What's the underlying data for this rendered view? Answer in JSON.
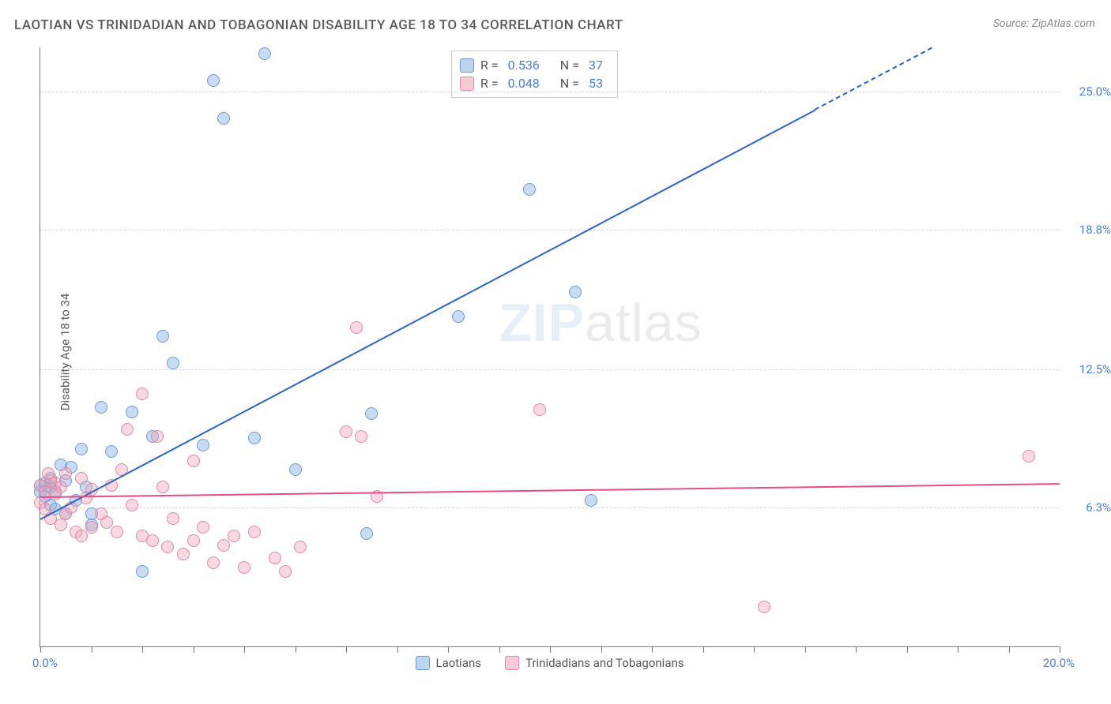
{
  "title": "LAOTIAN VS TRINIDADIAN AND TOBAGONIAN DISABILITY AGE 18 TO 34 CORRELATION CHART",
  "source": "Source: ZipAtlas.com",
  "ylabel": "Disability Age 18 to 34",
  "watermark_bold": "ZIP",
  "watermark_rest": "atlas",
  "chart": {
    "type": "scatter",
    "xlim": [
      0,
      20
    ],
    "ylim": [
      0,
      27
    ],
    "xlabels": {
      "min": "0.0%",
      "max": "20.0%"
    },
    "yticks": [
      {
        "v": 6.3,
        "label": "6.3%"
      },
      {
        "v": 12.5,
        "label": "12.5%"
      },
      {
        "v": 18.8,
        "label": "18.8%"
      },
      {
        "v": 25.0,
        "label": "25.0%"
      }
    ],
    "xticks": [
      0,
      1,
      2,
      3,
      4,
      5,
      6,
      7,
      8,
      9,
      10,
      11,
      12,
      13,
      14,
      15,
      16,
      17,
      18,
      19,
      20
    ],
    "colors": {
      "blue_fill": "#87b0e2",
      "blue_stroke": "#6a9bd8",
      "pink_fill": "#f0a0b4",
      "pink_stroke": "#e388a3",
      "axis": "#777777",
      "grid": "#d8d8d8",
      "text_axis": "#4a7fd6"
    },
    "series": [
      {
        "id": "laotians",
        "name": "Laotians",
        "color": "blue",
        "R": "0.536",
        "N": "37",
        "trend": {
          "x1": 0,
          "y1": 5.8,
          "x2": 17.5,
          "y2": 27.0,
          "color": "#2b63c9",
          "dashed_from_x": 15.2
        },
        "points": [
          [
            0.0,
            7.0
          ],
          [
            0.0,
            7.3
          ],
          [
            0.1,
            6.8
          ],
          [
            0.1,
            7.4
          ],
          [
            0.2,
            6.4
          ],
          [
            0.2,
            7.2
          ],
          [
            0.2,
            7.6
          ],
          [
            0.3,
            6.2
          ],
          [
            0.3,
            7.0
          ],
          [
            0.4,
            8.2
          ],
          [
            0.5,
            6.0
          ],
          [
            0.5,
            7.5
          ],
          [
            0.6,
            8.1
          ],
          [
            0.7,
            6.6
          ],
          [
            0.8,
            8.9
          ],
          [
            0.9,
            7.2
          ],
          [
            1.0,
            6.0
          ],
          [
            1.0,
            5.5
          ],
          [
            1.2,
            10.8
          ],
          [
            1.4,
            8.8
          ],
          [
            1.8,
            10.6
          ],
          [
            2.0,
            3.4
          ],
          [
            2.2,
            9.5
          ],
          [
            2.4,
            14.0
          ],
          [
            2.6,
            12.8
          ],
          [
            3.2,
            9.1
          ],
          [
            3.4,
            25.5
          ],
          [
            3.6,
            23.8
          ],
          [
            4.2,
            9.4
          ],
          [
            4.4,
            26.7
          ],
          [
            5.0,
            8.0
          ],
          [
            6.4,
            5.1
          ],
          [
            6.5,
            10.5
          ],
          [
            8.2,
            14.9
          ],
          [
            9.6,
            20.6
          ],
          [
            10.5,
            16.0
          ],
          [
            10.8,
            6.6
          ]
        ]
      },
      {
        "id": "trinidadians",
        "name": "Trinidadians and Tobagonians",
        "color": "pink",
        "R": "0.048",
        "N": "53",
        "trend": {
          "x1": 0,
          "y1": 6.8,
          "x2": 20,
          "y2": 7.4,
          "color": "#e94b84"
        },
        "points": [
          [
            0.0,
            7.3
          ],
          [
            0.0,
            6.5
          ],
          [
            0.1,
            7.0
          ],
          [
            0.1,
            6.2
          ],
          [
            0.2,
            7.5
          ],
          [
            0.2,
            5.8
          ],
          [
            0.3,
            6.9
          ],
          [
            0.3,
            7.4
          ],
          [
            0.4,
            5.5
          ],
          [
            0.4,
            7.2
          ],
          [
            0.5,
            6.0
          ],
          [
            0.5,
            7.8
          ],
          [
            0.6,
            6.3
          ],
          [
            0.7,
            5.2
          ],
          [
            0.8,
            7.6
          ],
          [
            0.8,
            5.0
          ],
          [
            0.9,
            6.7
          ],
          [
            1.0,
            5.4
          ],
          [
            1.0,
            7.1
          ],
          [
            1.2,
            6.0
          ],
          [
            1.3,
            5.6
          ],
          [
            1.4,
            7.3
          ],
          [
            1.5,
            5.2
          ],
          [
            1.6,
            8.0
          ],
          [
            1.7,
            9.8
          ],
          [
            1.8,
            6.4
          ],
          [
            2.0,
            5.0
          ],
          [
            2.0,
            11.4
          ],
          [
            2.2,
            4.8
          ],
          [
            2.3,
            9.5
          ],
          [
            2.4,
            7.2
          ],
          [
            2.5,
            4.5
          ],
          [
            2.6,
            5.8
          ],
          [
            2.8,
            4.2
          ],
          [
            3.0,
            8.4
          ],
          [
            3.0,
            4.8
          ],
          [
            3.2,
            5.4
          ],
          [
            3.4,
            3.8
          ],
          [
            3.6,
            4.6
          ],
          [
            3.8,
            5.0
          ],
          [
            4.0,
            3.6
          ],
          [
            4.2,
            5.2
          ],
          [
            4.6,
            4.0
          ],
          [
            4.8,
            3.4
          ],
          [
            5.1,
            4.5
          ],
          [
            6.0,
            9.7
          ],
          [
            6.2,
            14.4
          ],
          [
            6.3,
            9.5
          ],
          [
            6.6,
            6.8
          ],
          [
            9.8,
            10.7
          ],
          [
            14.2,
            1.8
          ],
          [
            19.4,
            8.6
          ],
          [
            0.15,
            7.8
          ]
        ]
      }
    ]
  },
  "legend": {
    "rows": [
      {
        "swatch": "blue",
        "r_label": "R =",
        "r_val": "0.536",
        "n_label": "N =",
        "n_val": "37"
      },
      {
        "swatch": "pink",
        "r_label": "R =",
        "r_val": "0.048",
        "n_label": "N =",
        "n_val": "53"
      }
    ],
    "bottom": [
      {
        "swatch": "blue",
        "label": "Laotians"
      },
      {
        "swatch": "pink",
        "label": "Trinidadians and Tobagonians"
      }
    ]
  }
}
